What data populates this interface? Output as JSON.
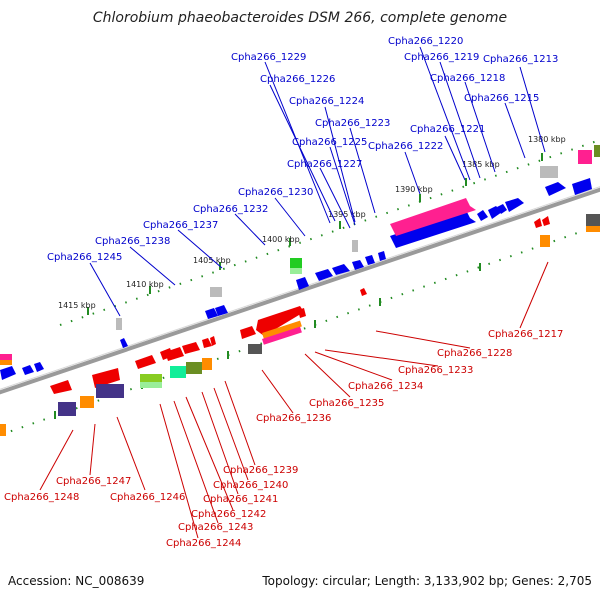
{
  "title": "Chlorobium phaeobacteroides DSM 266, complete genome",
  "footer": {
    "accession": "Accession: NC_008639",
    "summary": "Topology: circular; Length: 3,133,902 bp; Genes: 2,705"
  },
  "colors": {
    "forward_label": "#0000cc",
    "reverse_label": "#cc0000",
    "forward_gene": "#0000ee",
    "reverse_gene": "#ee0000",
    "backbone": "#888888",
    "ticks": "#228b22"
  },
  "scale_labels": [
    "1380 kbp",
    "1385 kbp",
    "1390 kbp",
    "1395 kbp",
    "1400 kbp",
    "1405 kbp",
    "1410 kbp",
    "1415 kbp"
  ],
  "forward_labels": [
    "Cpha266_1220",
    "Cpha266_1219",
    "Cpha266_1213",
    "Cpha266_1229",
    "Cpha266_1218",
    "Cpha266_1226",
    "Cpha266_1215",
    "Cpha266_1224",
    "Cpha266_1223",
    "Cpha266_1221",
    "Cpha266_1225",
    "Cpha266_1222",
    "Cpha266_1227",
    "Cpha266_1230",
    "Cpha266_1232",
    "Cpha266_1237",
    "Cpha266_1238",
    "Cpha266_1245"
  ],
  "reverse_labels": [
    "Cpha266_1217",
    "Cpha266_1228",
    "Cpha266_1233",
    "Cpha266_1234",
    "Cpha266_1235",
    "Cpha266_1236",
    "Cpha266_1239",
    "Cpha266_1240",
    "Cpha266_1241",
    "Cpha266_1242",
    "Cpha266_1243",
    "Cpha266_1244",
    "Cpha266_1247",
    "Cpha266_1248",
    "Cpha266_1246"
  ]
}
